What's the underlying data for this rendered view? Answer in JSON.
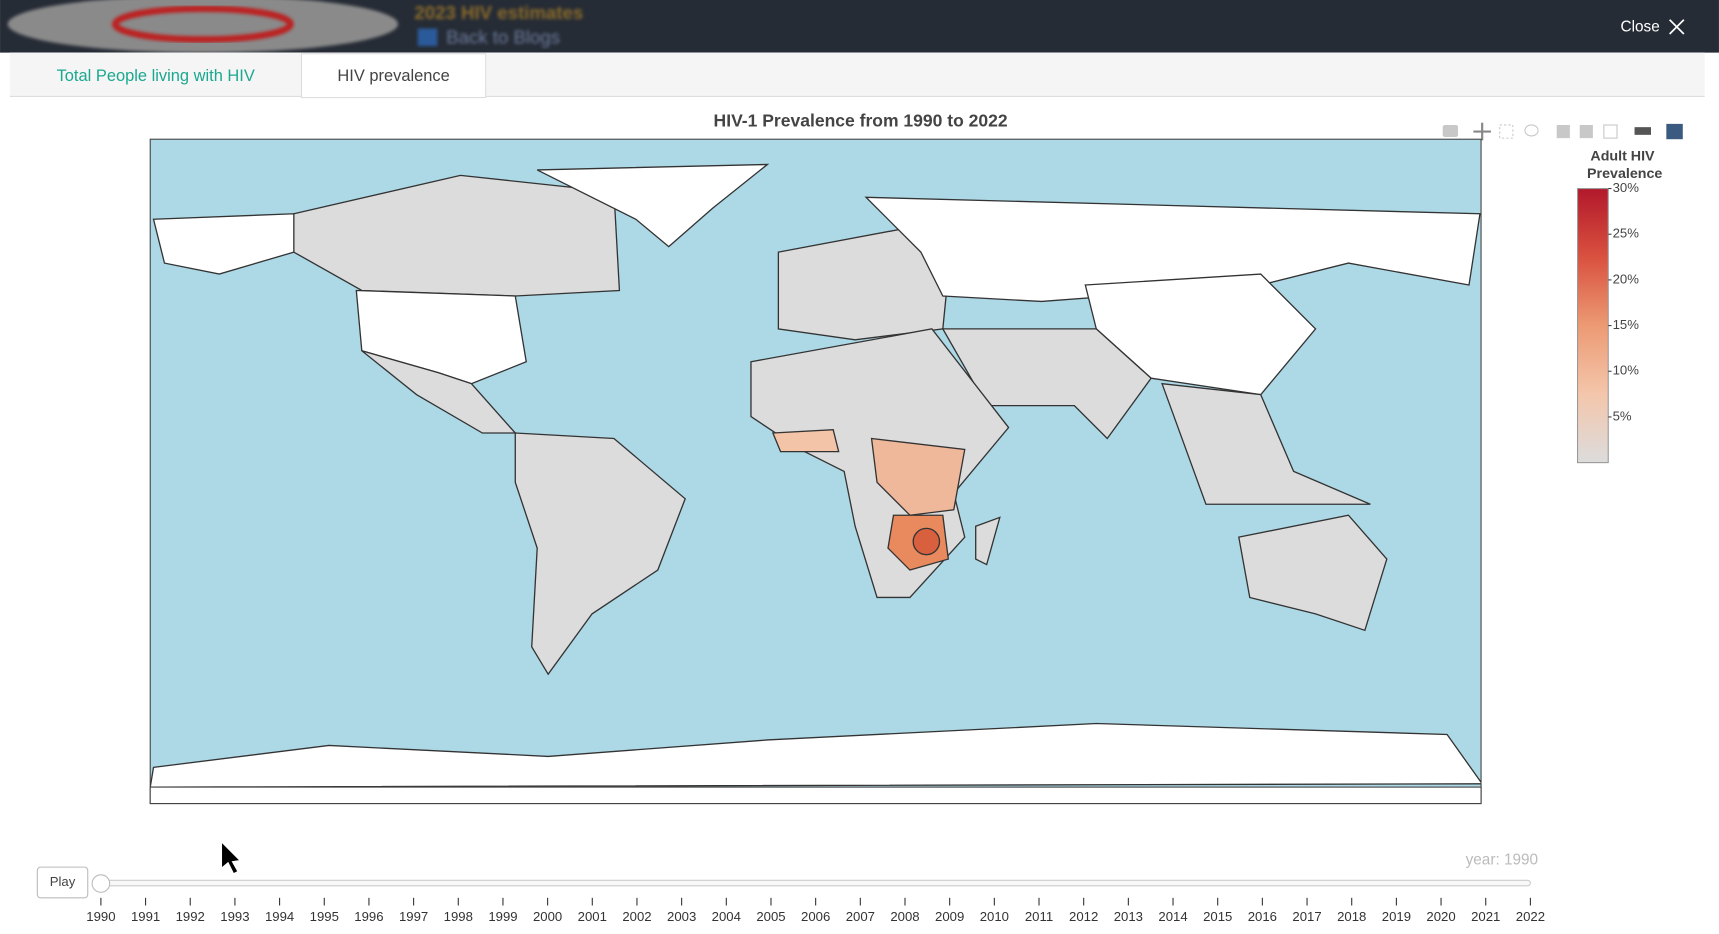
{
  "header": {
    "blog_title": "2023 HIV estimates",
    "back_link": "Back to Blogs",
    "close": "Close"
  },
  "tabs": [
    "Total People living with HIV",
    "HIV prevalence"
  ],
  "active_tab": 1,
  "map": {
    "title": "HIV-1 Prevalence from 1990 to 2022",
    "colorbar": {
      "title": [
        "Adult HIV",
        "Prevalence"
      ],
      "range": [
        0,
        30
      ],
      "ticks": [
        {
          "value": 5,
          "label": "5%"
        },
        {
          "value": 10,
          "label": "10%"
        },
        {
          "value": 15,
          "label": "15%"
        },
        {
          "value": 20,
          "label": "20%"
        },
        {
          "value": 25,
          "label": "25%"
        },
        {
          "value": 30,
          "label": "30%"
        }
      ],
      "colorscale": [
        "#dcdcdc",
        "#f4c6ab",
        "#ec9a73",
        "#d9513f",
        "#b2182b"
      ]
    }
  },
  "slider": {
    "play": "Play",
    "current": "year: 1990",
    "steps": [
      "1990",
      "1991",
      "1992",
      "1993",
      "1994",
      "1995",
      "1996",
      "1997",
      "1998",
      "1999",
      "2000",
      "2001",
      "2002",
      "2003",
      "2004",
      "2005",
      "2006",
      "2007",
      "2008",
      "2009",
      "2010",
      "2011",
      "2012",
      "2013",
      "2014",
      "2015",
      "2016",
      "2017",
      "2018",
      "2019",
      "2020",
      "2021",
      "2022"
    ]
  }
}
